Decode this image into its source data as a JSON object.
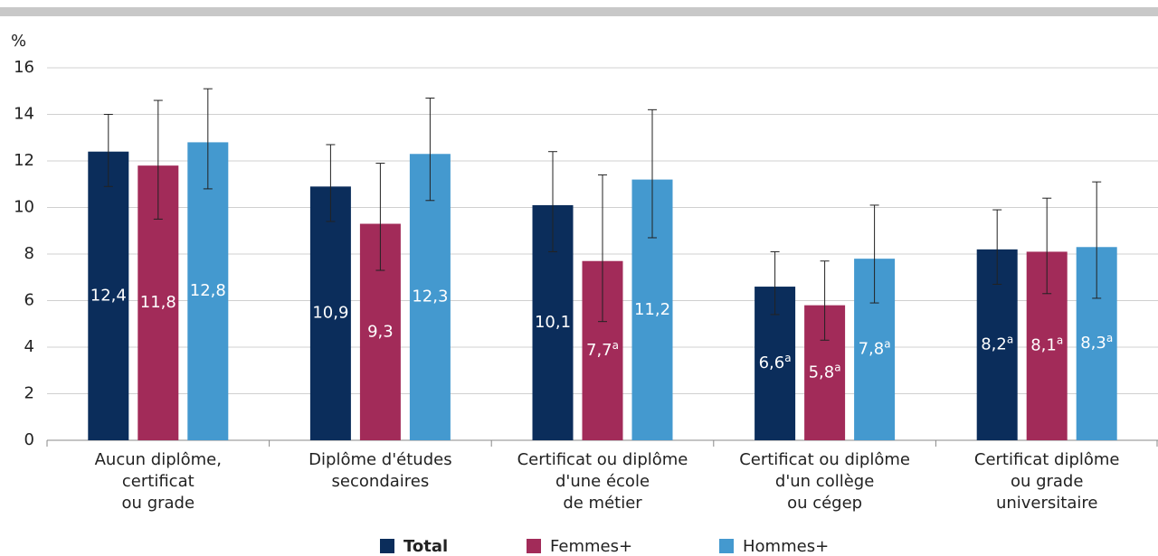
{
  "chart_data": {
    "type": "bar",
    "y_unit": "%",
    "categories": [
      [
        "Aucun diplôme,",
        "certificat",
        "ou grade"
      ],
      [
        "Diplôme d'études",
        "secondaires"
      ],
      [
        "Certificat ou diplôme",
        "d'une école",
        "de métier"
      ],
      [
        "Certificat ou diplôme",
        "d'un collège",
        "ou cégep"
      ],
      [
        "Certificat diplôme",
        "ou grade",
        "universitaire"
      ]
    ],
    "series": [
      {
        "name": "Total",
        "color": "#0b2d5b",
        "values": [
          12.4,
          10.9,
          10.1,
          6.6,
          8.2
        ],
        "value_labels": [
          "12,4",
          "10,9",
          "10,1",
          "6,6",
          "8,2"
        ],
        "value_notes": [
          null,
          null,
          null,
          "a",
          "a"
        ],
        "error_low": [
          10.9,
          9.4,
          8.1,
          5.4,
          6.7
        ],
        "error_high": [
          14.0,
          12.7,
          12.4,
          8.1,
          9.9
        ]
      },
      {
        "name": "Femmes+",
        "color": "#a22b59",
        "values": [
          11.8,
          9.3,
          7.7,
          5.8,
          8.1
        ],
        "value_labels": [
          "11,8",
          "9,3",
          "7,7",
          "5,8",
          "8,1"
        ],
        "value_notes": [
          null,
          null,
          "a",
          "a",
          "a"
        ],
        "error_low": [
          9.5,
          7.3,
          5.1,
          4.3,
          6.3
        ],
        "error_high": [
          14.6,
          11.9,
          11.4,
          7.7,
          10.4
        ]
      },
      {
        "name": "Hommes+",
        "color": "#4499cf",
        "values": [
          12.8,
          12.3,
          11.2,
          7.8,
          8.3
        ],
        "value_labels": [
          "12,8",
          "12,3",
          "11,2",
          "7,8",
          "8,3"
        ],
        "value_notes": [
          null,
          null,
          null,
          "a",
          "a"
        ],
        "error_low": [
          10.8,
          10.3,
          8.7,
          5.9,
          6.1
        ],
        "error_high": [
          15.1,
          14.7,
          14.2,
          10.1,
          11.1
        ]
      }
    ],
    "ylim": [
      0,
      16
    ],
    "yticks": [
      0,
      2,
      4,
      6,
      8,
      10,
      12,
      14,
      16
    ],
    "grid": true
  }
}
